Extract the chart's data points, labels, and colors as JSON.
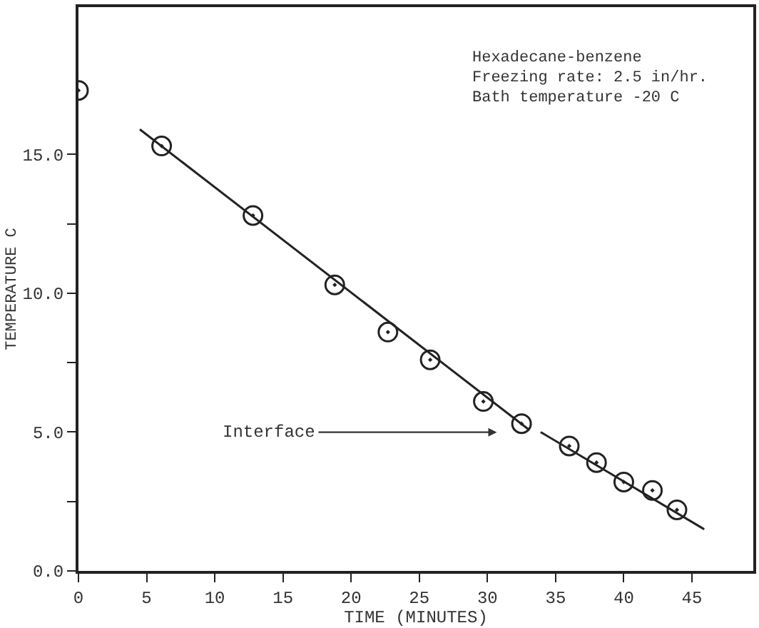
{
  "chart_data": {
    "type": "scatter",
    "xlabel": "TIME (MINUTES)",
    "ylabel": "TEMPERATURE C",
    "marker": "circle",
    "xlim": [
      0,
      49.5
    ],
    "ylim": [
      0,
      20.3
    ],
    "xticks": [
      0,
      5,
      10,
      15,
      20,
      25,
      30,
      35,
      40,
      45
    ],
    "yticks": [
      {
        "value": 0,
        "label": "0.0"
      },
      {
        "value": 2.5,
        "label": null
      },
      {
        "value": 5,
        "label": "5.0"
      },
      {
        "value": 7.5,
        "label": null
      },
      {
        "value": 10,
        "label": "10.0"
      },
      {
        "value": 12.5,
        "label": null
      },
      {
        "value": 15,
        "label": "15.0"
      }
    ],
    "series": [
      {
        "color": "#222222",
        "x": [
          0,
          6.1,
          12.8,
          18.8,
          22.7,
          25.8,
          29.7,
          32.5,
          36.0,
          38.0,
          40.0,
          42.1,
          43.9
        ],
        "values": [
          17.3,
          15.3,
          12.8,
          10.3,
          8.6,
          7.6,
          6.1,
          5.3,
          4.5,
          3.9,
          3.2,
          2.9,
          2.2
        ]
      },
      {
        "type": "line",
        "color": "#222222",
        "marker": "none",
        "x": [
          4.5,
          33.0
        ],
        "values": [
          15.9,
          5.1
        ]
      },
      {
        "type": "line",
        "color": "#222222",
        "marker": "none",
        "x": [
          33.9,
          45.9
        ],
        "values": [
          5.0,
          1.5
        ]
      }
    ],
    "annotations": [
      "Interface",
      "Hexadecane-benzene",
      "Freezing rate: 2.5 in/hr.",
      "Bath temperature -20 C"
    ]
  }
}
